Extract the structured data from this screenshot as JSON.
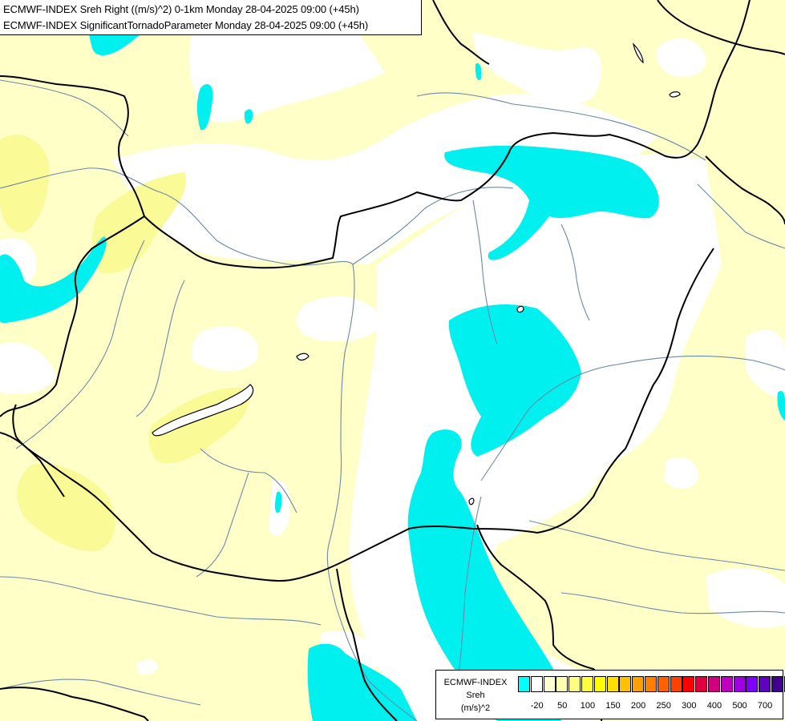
{
  "title": {
    "line1": "ECMWF-INDEX Sreh Right ((m/s)^2) 0-1km Monday 28-04-2025 09:00 (+45h)",
    "line2": "ECMWF-INDEX SignificantTornadoParameter Monday 28-04-2025 09:00 (+45h)"
  },
  "legend": {
    "source": "ECMWF-INDEX",
    "variable": "Sreh",
    "unit": "(m/s)^2",
    "swatch_colors": [
      "#00ffff",
      "#ffffff",
      "#ffffd0",
      "#ffffb0",
      "#ffff80",
      "#ffff40",
      "#ffff00",
      "#ffe000",
      "#ffc000",
      "#ffa000",
      "#ff8000",
      "#ff6000",
      "#ff4000",
      "#ff0000",
      "#e00040",
      "#d00080",
      "#c000c0",
      "#a000e0",
      "#8000ff",
      "#6000c0",
      "#400090",
      "#200080"
    ],
    "ticks": [
      {
        "label": "-20",
        "after_swatch": 1
      },
      {
        "label": "50",
        "after_swatch": 3
      },
      {
        "label": "100",
        "after_swatch": 5
      },
      {
        "label": "150",
        "after_swatch": 7
      },
      {
        "label": "200",
        "after_swatch": 9
      },
      {
        "label": "250",
        "after_swatch": 11
      },
      {
        "label": "300",
        "after_swatch": 13
      },
      {
        "label": "400",
        "after_swatch": 15
      },
      {
        "label": "500",
        "after_swatch": 17
      },
      {
        "label": "700",
        "after_swatch": 19
      }
    ]
  },
  "colors": {
    "land_background": "#ffffc8",
    "neutral_field": "#ffffff",
    "low_field": "#00f0f0",
    "higher_field": "#fafa96",
    "borders": "#000000",
    "rivers": "#6a89a8"
  }
}
